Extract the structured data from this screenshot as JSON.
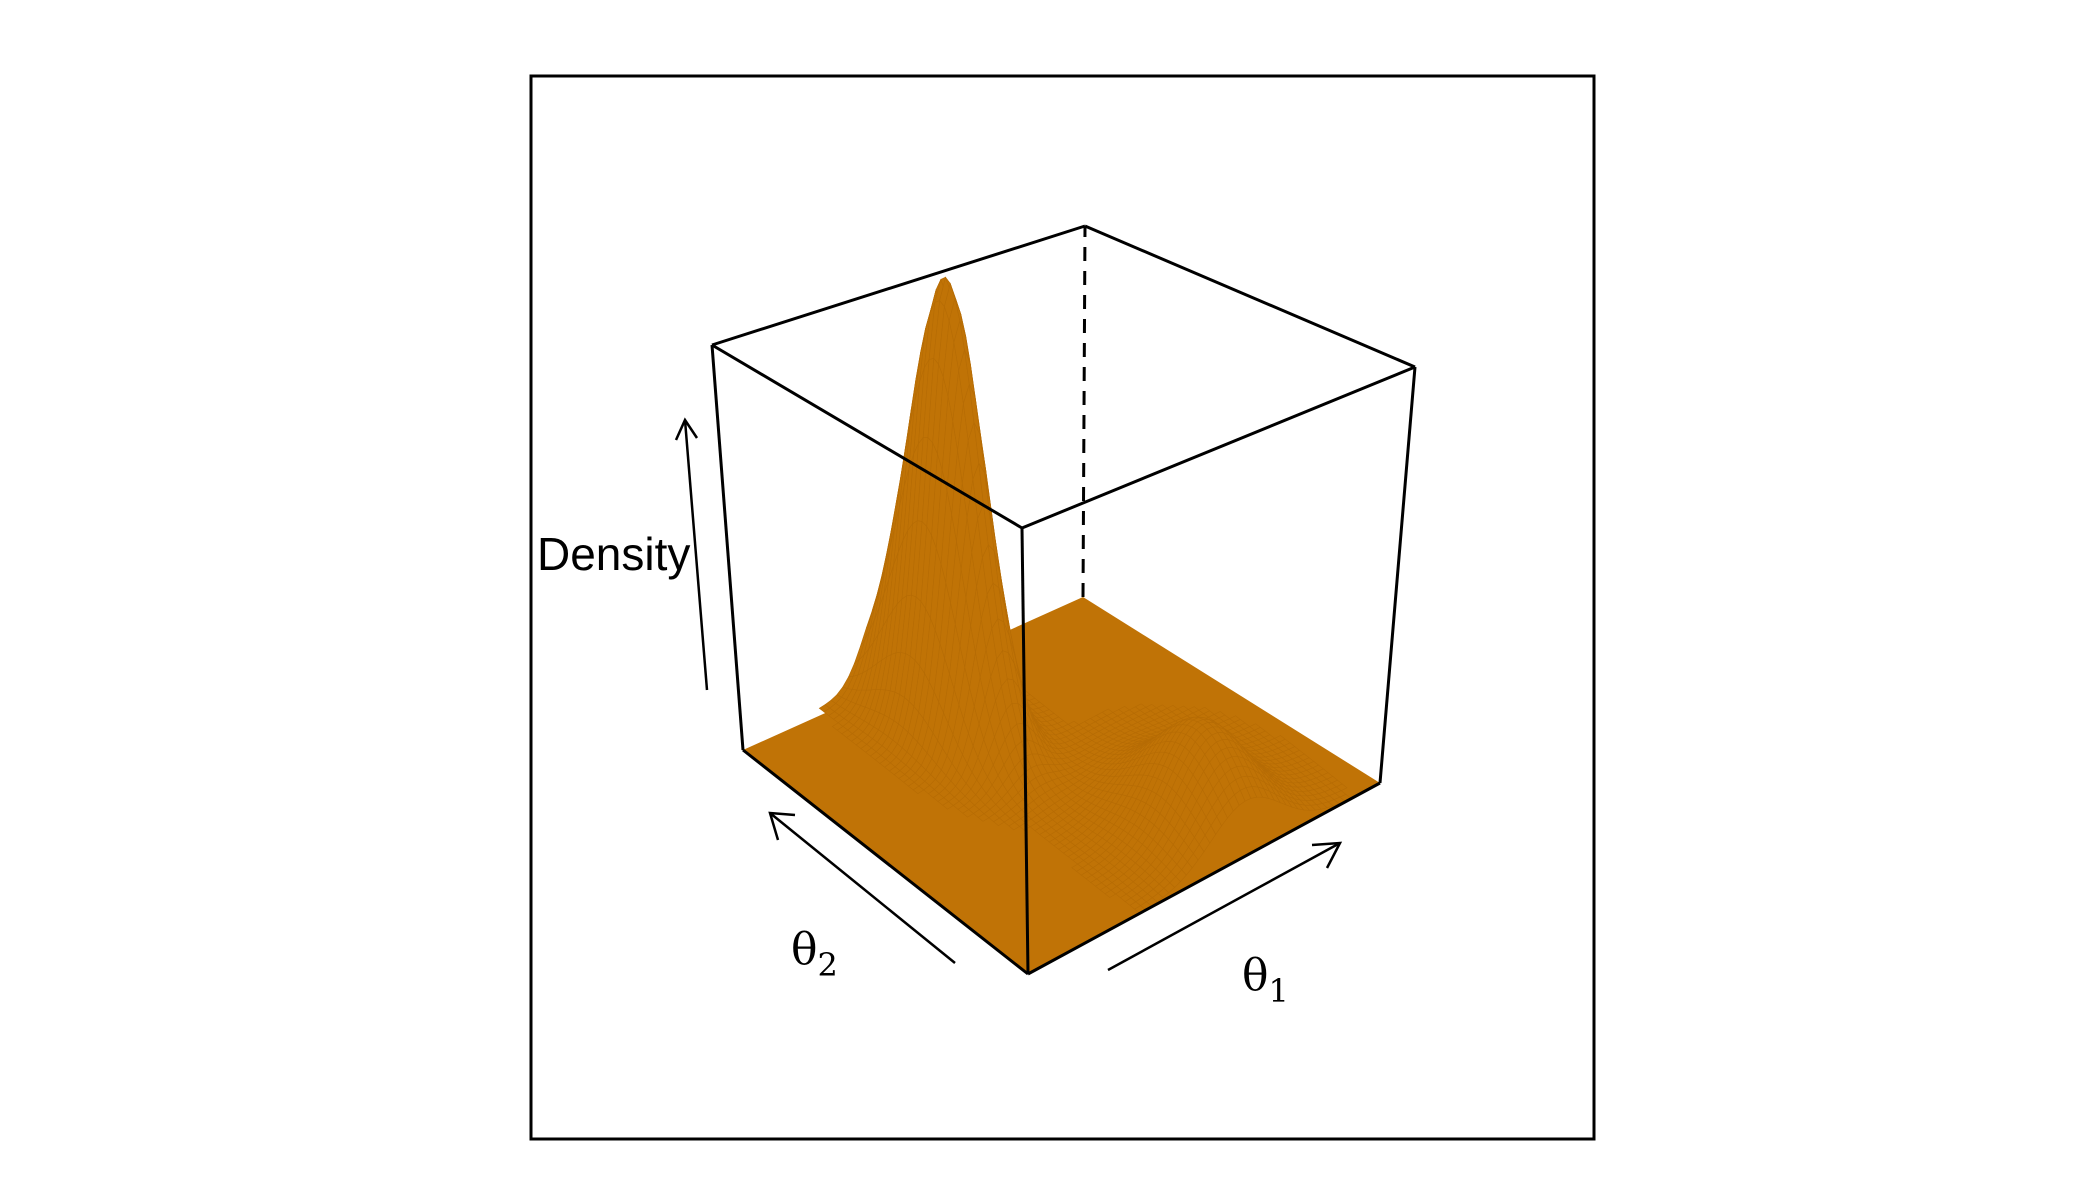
{
  "chart_data": {
    "type": "surface3d",
    "xlabel_symbol": "θ",
    "xlabel_sub": "1",
    "ylabel_symbol": "θ",
    "ylabel_sub": "2",
    "zlabel": "Density",
    "surface_color": "#C07306",
    "box_color": "#000000",
    "box": true,
    "axes": "arrows-only"
  }
}
